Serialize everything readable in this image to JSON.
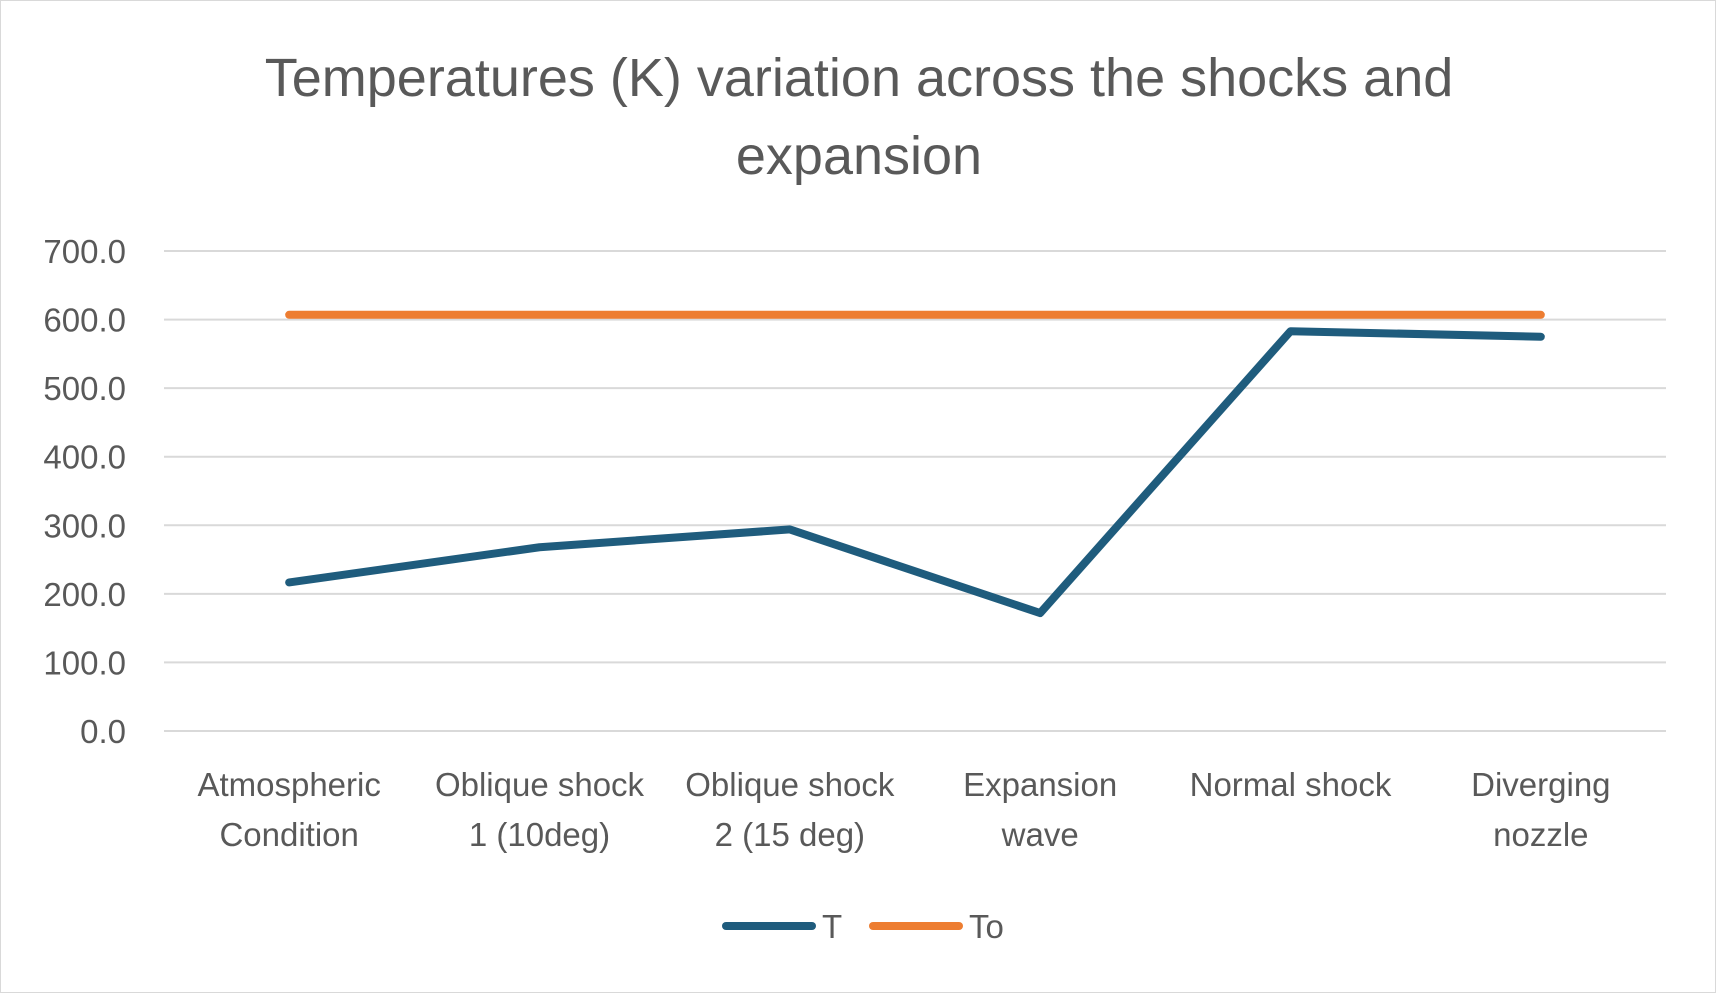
{
  "chart_data": {
    "type": "line",
    "title_lines": [
      "Temperatures (K) variation across  the shocks and",
      "expansion"
    ],
    "categories": [
      [
        "Atmospheric",
        "Condition"
      ],
      [
        "Oblique shock",
        "1 (10deg)"
      ],
      [
        "Oblique shock",
        "2 (15 deg)"
      ],
      [
        "Expansion",
        "wave"
      ],
      [
        "Normal shock"
      ],
      [
        "Diverging",
        "nozzle"
      ]
    ],
    "series": [
      {
        "name": "T",
        "color": "#1f5c7d",
        "values": [
          216.7,
          268.0,
          294.0,
          172.0,
          583.0,
          575.0
        ]
      },
      {
        "name": "To",
        "color": "#ed7d31",
        "values": [
          607.0,
          607.0,
          607.0,
          607.0,
          607.0,
          607.0
        ]
      }
    ],
    "ylim": [
      0,
      700
    ],
    "yticks": [
      "0.0",
      "100.0",
      "200.0",
      "300.0",
      "400.0",
      "500.0",
      "600.0",
      "700.0"
    ],
    "grid": true,
    "legend_position": "bottom"
  }
}
